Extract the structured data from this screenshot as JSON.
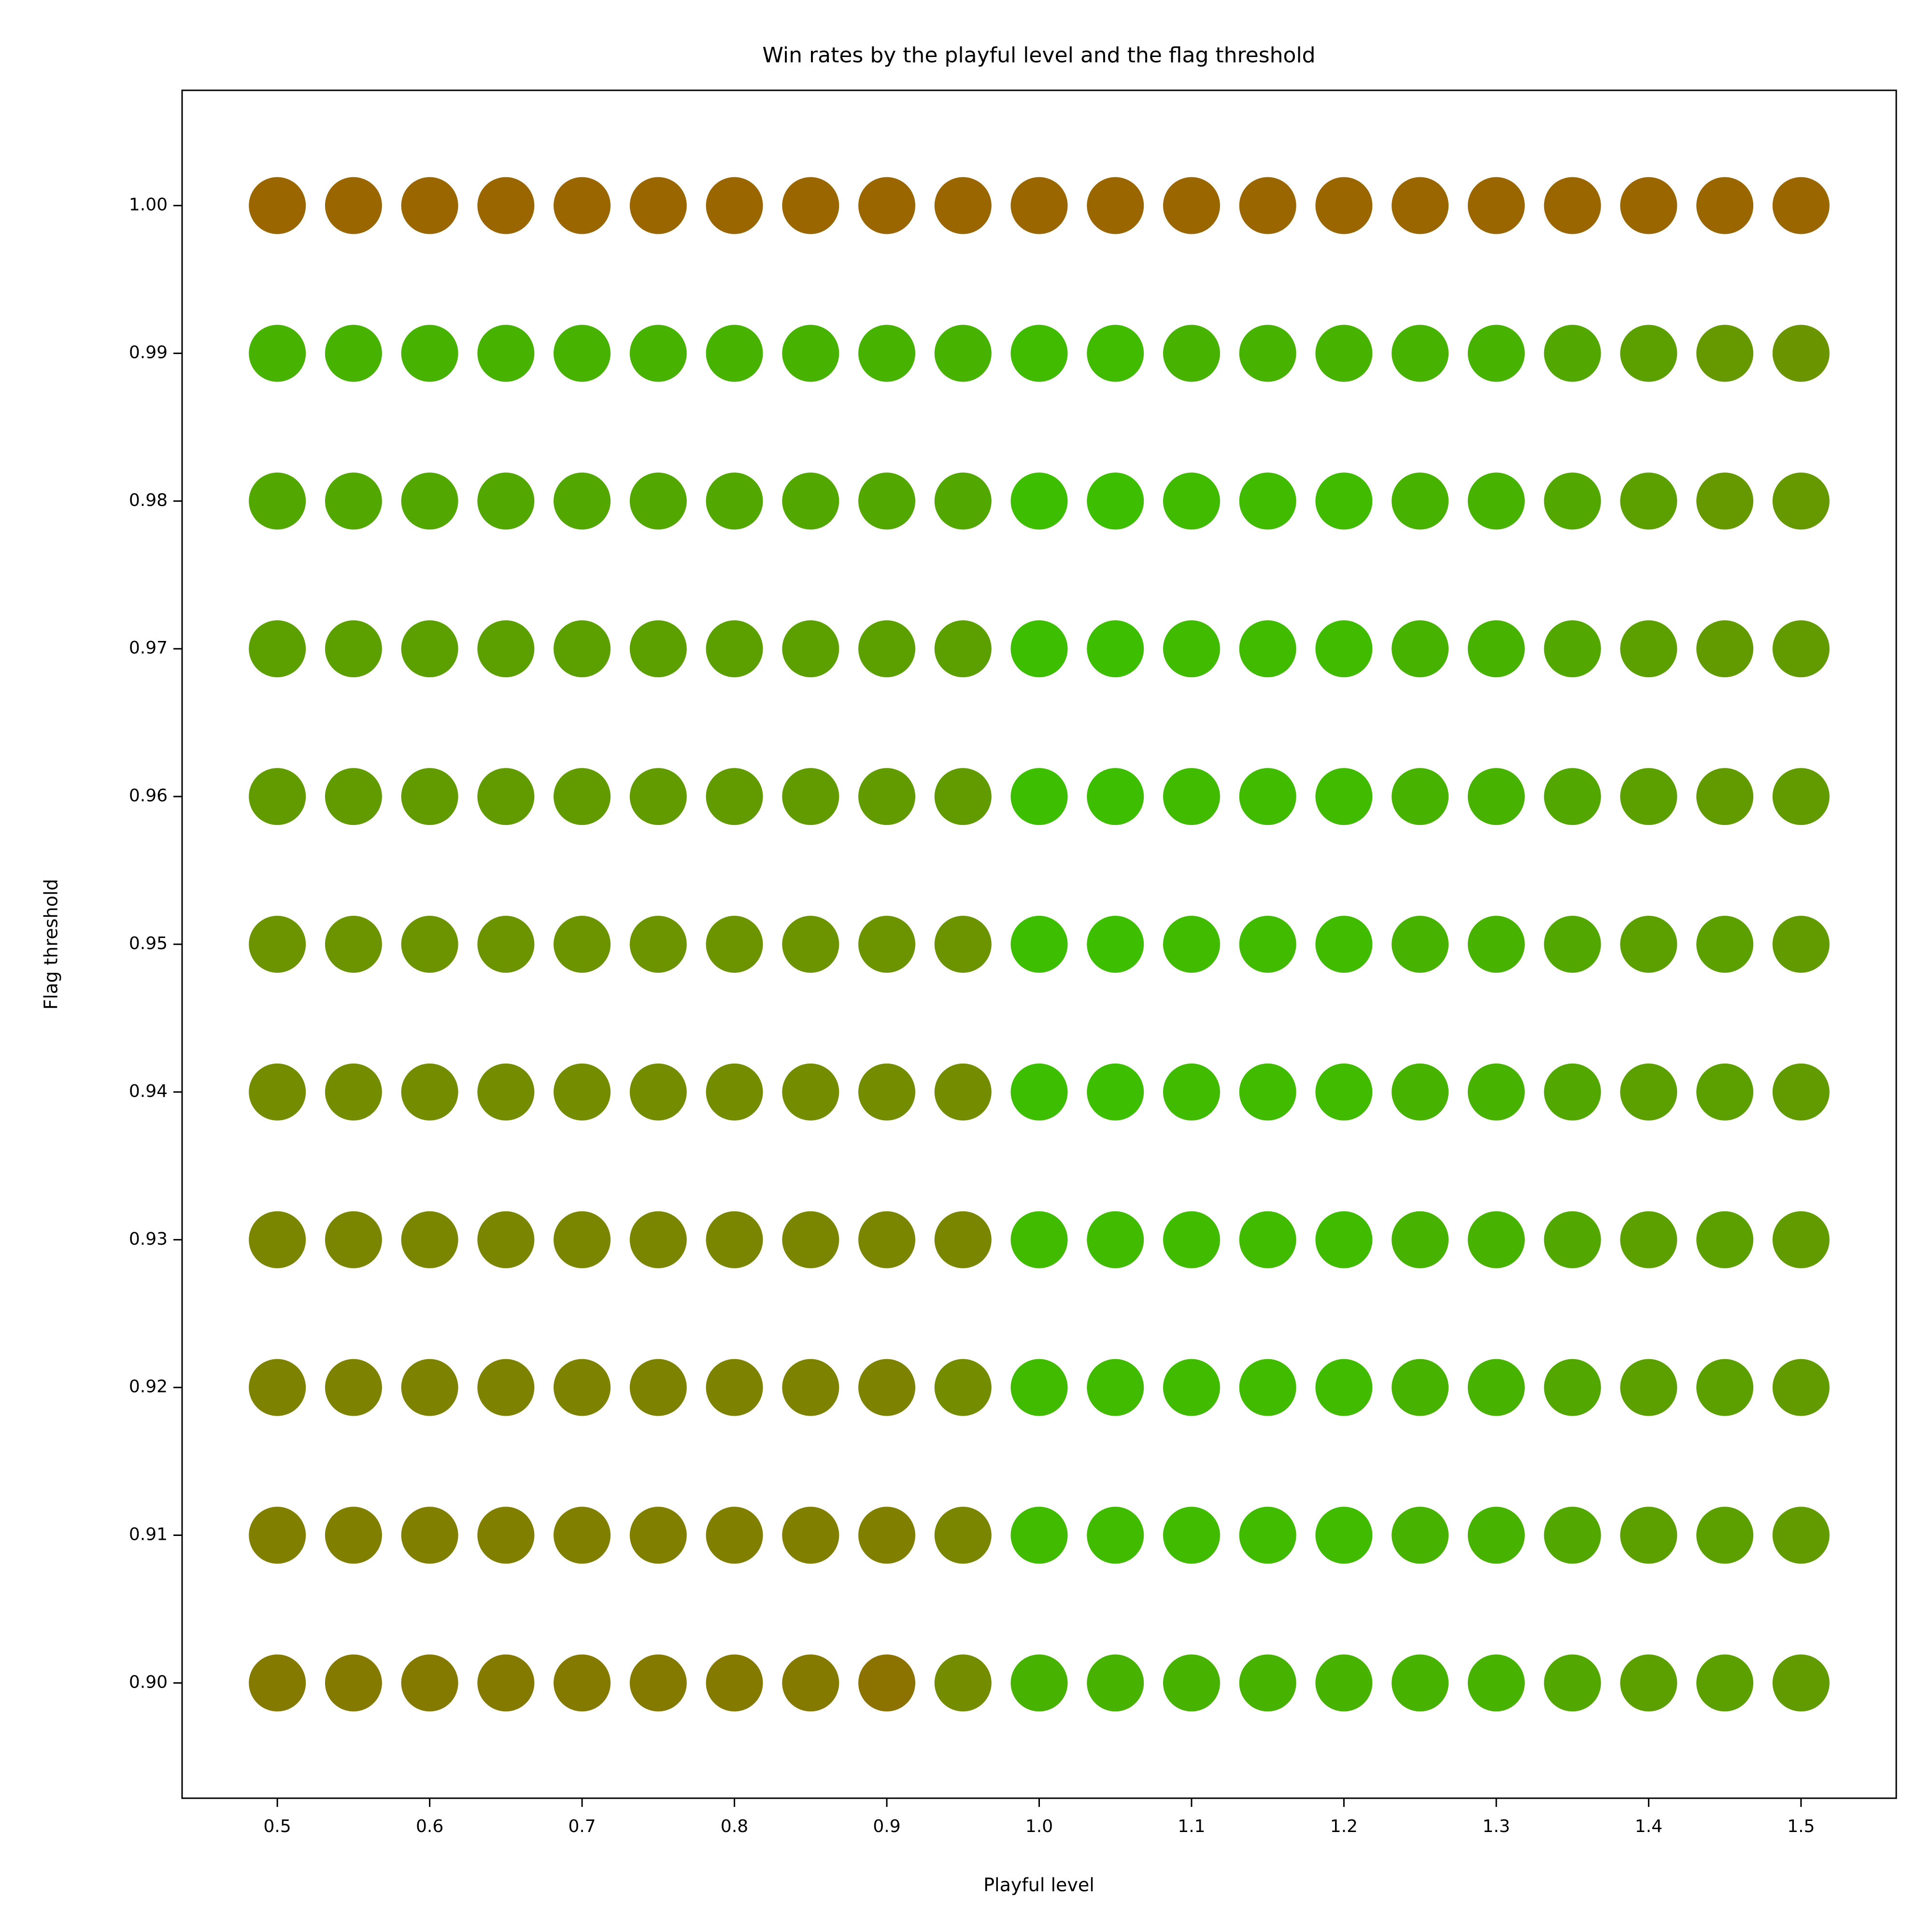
{
  "chart_data": {
    "type": "scatter",
    "title": "Win rates by the playful level and the flag threshold",
    "x_label": "Playful level",
    "y_label": "Flag threshold",
    "x": [
      0.5,
      0.55,
      0.6,
      0.65,
      0.7,
      0.75,
      0.8,
      0.85,
      0.9,
      0.95,
      1.0,
      1.05,
      1.1,
      1.15,
      1.2,
      1.25,
      1.3,
      1.35,
      1.4,
      1.45,
      1.5
    ],
    "xlim": [
      0.4375,
      1.5625
    ],
    "ylim": [
      0.8922,
      1.0078
    ],
    "xticks": [
      0.5,
      0.6,
      0.7,
      0.8,
      0.9,
      {
        "value": 1,
        "label": "1.0"
      },
      1.1,
      1.2,
      1.3,
      1.4,
      1.5
    ],
    "yticks": [
      {
        "value": 0.9,
        "label": "0.90"
      },
      0.91,
      0.92,
      0.93,
      0.94,
      0.95,
      0.96,
      0.97,
      0.98,
      0.99,
      {
        "value": 1,
        "label": "1.00"
      }
    ],
    "marker_size": 59,
    "series": [
      {
        "values": [
          1,
          1,
          1,
          1,
          1,
          1,
          1,
          1,
          1,
          1,
          1,
          1,
          1,
          1,
          1,
          1,
          1,
          1,
          1,
          1,
          1
        ],
        "colors": [
          "#996600",
          "#996600",
          "#996600",
          "#996600",
          "#996600",
          "#996600",
          "#996600",
          "#996600",
          "#996600",
          "#996600",
          "#996600",
          "#996600",
          "#996600",
          "#996600",
          "#996600",
          "#996600",
          "#996600",
          "#996600",
          "#996600",
          "#996600",
          "#996600"
        ]
      },
      {
        "values": [
          0.99,
          0.99,
          0.99,
          0.99,
          0.99,
          0.99,
          0.99,
          0.99,
          0.99,
          0.99,
          0.99,
          0.99,
          0.99,
          0.99,
          0.99,
          0.99,
          0.99,
          0.99,
          0.99,
          0.99,
          0.99
        ],
        "colors": [
          "#47b300",
          "#47b300",
          "#47b300",
          "#47b300",
          "#47b300",
          "#47b300",
          "#47b300",
          "#47b300",
          "#47b300",
          "#47b300",
          "#40bb00",
          "#40bb00",
          "#47b300",
          "#47b300",
          "#47b300",
          "#47b300",
          "#47b300",
          "#52a800",
          "#5ca000",
          "#669900",
          "#6b9500"
        ]
      },
      {
        "values": [
          0.98,
          0.98,
          0.98,
          0.98,
          0.98,
          0.98,
          0.98,
          0.98,
          0.98,
          0.98,
          0.98,
          0.98,
          0.98,
          0.98,
          0.98,
          0.98,
          0.98,
          0.98,
          0.98,
          0.98,
          0.98
        ],
        "colors": [
          "#52a800",
          "#52a800",
          "#52a800",
          "#52a800",
          "#52a800",
          "#52a800",
          "#52a800",
          "#52a800",
          "#52a800",
          "#52a800",
          "#3dbf00",
          "#3dbf00",
          "#40bb00",
          "#40bb00",
          "#40bb00",
          "#47b300",
          "#47b300",
          "#52a800",
          "#5ca000",
          "#669900",
          "#669900"
        ]
      },
      {
        "values": [
          0.97,
          0.97,
          0.97,
          0.97,
          0.97,
          0.97,
          0.97,
          0.97,
          0.97,
          0.97,
          0.97,
          0.97,
          0.97,
          0.97,
          0.97,
          0.97,
          0.97,
          0.97,
          0.97,
          0.97,
          0.97
        ],
        "colors": [
          "#5ca000",
          "#5ca000",
          "#5ca000",
          "#5ca000",
          "#5ca000",
          "#5ca000",
          "#5ca000",
          "#5ca000",
          "#5ca000",
          "#5ca000",
          "#3dbf00",
          "#3dbf00",
          "#40bb00",
          "#40bb00",
          "#40bb00",
          "#47b300",
          "#47b300",
          "#52a800",
          "#5ca000",
          "#629b00",
          "#629b00"
        ]
      },
      {
        "values": [
          0.96,
          0.96,
          0.96,
          0.96,
          0.96,
          0.96,
          0.96,
          0.96,
          0.96,
          0.96,
          0.96,
          0.96,
          0.96,
          0.96,
          0.96,
          0.96,
          0.96,
          0.96,
          0.96,
          0.96,
          0.96
        ],
        "colors": [
          "#629b00",
          "#629b00",
          "#629b00",
          "#629b00",
          "#629b00",
          "#629b00",
          "#629b00",
          "#629b00",
          "#629b00",
          "#629b00",
          "#3dbf00",
          "#3dbf00",
          "#40bb00",
          "#40bb00",
          "#40bb00",
          "#47b300",
          "#47b300",
          "#52a800",
          "#5ca000",
          "#629b00",
          "#629b00"
        ]
      },
      {
        "values": [
          0.95,
          0.95,
          0.95,
          0.95,
          0.95,
          0.95,
          0.95,
          0.95,
          0.95,
          0.95,
          0.95,
          0.95,
          0.95,
          0.95,
          0.95,
          0.95,
          0.95,
          0.95,
          0.95,
          0.95,
          0.95
        ],
        "colors": [
          "#6b9400",
          "#6b9400",
          "#6b9400",
          "#6b9400",
          "#6b9400",
          "#6b9400",
          "#6b9400",
          "#6b9400",
          "#6b9400",
          "#6b9400",
          "#3dbf00",
          "#3dbf00",
          "#40bb00",
          "#40bb00",
          "#40bb00",
          "#47b300",
          "#47b300",
          "#52a800",
          "#5ca000",
          "#5ca000",
          "#629b00"
        ]
      },
      {
        "values": [
          0.94,
          0.94,
          0.94,
          0.94,
          0.94,
          0.94,
          0.94,
          0.94,
          0.94,
          0.94,
          0.94,
          0.94,
          0.94,
          0.94,
          0.94,
          0.94,
          0.94,
          0.94,
          0.94,
          0.94,
          0.94
        ],
        "colors": [
          "#738c00",
          "#738c00",
          "#738c00",
          "#738c00",
          "#738c00",
          "#738c00",
          "#738c00",
          "#738c00",
          "#738c00",
          "#738c00",
          "#3dbf00",
          "#3dbf00",
          "#40bb00",
          "#40bb00",
          "#40bb00",
          "#47b300",
          "#47b300",
          "#52a800",
          "#5ca000",
          "#5ca000",
          "#629b00"
        ]
      },
      {
        "values": [
          0.93,
          0.93,
          0.93,
          0.93,
          0.93,
          0.93,
          0.93,
          0.93,
          0.93,
          0.93,
          0.93,
          0.93,
          0.93,
          0.93,
          0.93,
          0.93,
          0.93,
          0.93,
          0.93,
          0.93,
          0.93
        ],
        "colors": [
          "#7a8500",
          "#7a8500",
          "#7a8500",
          "#7a8500",
          "#7a8500",
          "#7a8500",
          "#7a8500",
          "#7a8500",
          "#7a8500",
          "#7a8500",
          "#40bb00",
          "#40bb00",
          "#40bb00",
          "#40bb00",
          "#40bb00",
          "#47b300",
          "#47b300",
          "#52a800",
          "#5ca000",
          "#5ca000",
          "#629b00"
        ]
      },
      {
        "values": [
          0.92,
          0.92,
          0.92,
          0.92,
          0.92,
          0.92,
          0.92,
          0.92,
          0.92,
          0.92,
          0.92,
          0.92,
          0.92,
          0.92,
          0.92,
          0.92,
          0.92,
          0.92,
          0.92,
          0.92,
          0.92
        ],
        "colors": [
          "#7d8200",
          "#7d8200",
          "#7d8200",
          "#7d8200",
          "#7d8200",
          "#7d8200",
          "#7d8200",
          "#7d8200",
          "#7d8200",
          "#738c00",
          "#40bb00",
          "#40bb00",
          "#40bb00",
          "#40bb00",
          "#40bb00",
          "#47b300",
          "#47b300",
          "#52a800",
          "#5ca000",
          "#5ca000",
          "#629b00"
        ]
      },
      {
        "values": [
          0.91,
          0.91,
          0.91,
          0.91,
          0.91,
          0.91,
          0.91,
          0.91,
          0.91,
          0.91,
          0.91,
          0.91,
          0.91,
          0.91,
          0.91,
          0.91,
          0.91,
          0.91,
          0.91,
          0.91,
          0.91
        ],
        "colors": [
          "#807f00",
          "#807f00",
          "#807f00",
          "#807f00",
          "#807f00",
          "#807f00",
          "#807f00",
          "#807f00",
          "#807f00",
          "#7a8500",
          "#40bb00",
          "#40bb00",
          "#40bb00",
          "#40bb00",
          "#40bb00",
          "#47b300",
          "#47b300",
          "#52a800",
          "#5ca000",
          "#5ca000",
          "#629b00"
        ]
      },
      {
        "values": [
          0.9,
          0.9,
          0.9,
          0.9,
          0.9,
          0.9,
          0.9,
          0.9,
          0.9,
          0.9,
          0.9,
          0.9,
          0.9,
          0.9,
          0.9,
          0.9,
          0.9,
          0.9,
          0.9,
          0.9,
          0.9
        ],
        "colors": [
          "#857a00",
          "#857a00",
          "#857a00",
          "#857a00",
          "#857a00",
          "#857a00",
          "#857a00",
          "#857a00",
          "#8c7300",
          "#738c00",
          "#47b300",
          "#47b300",
          "#47b300",
          "#47b300",
          "#47b300",
          "#47b300",
          "#47b300",
          "#52a800",
          "#5ca000",
          "#5ca000",
          "#629b00"
        ]
      }
    ]
  }
}
